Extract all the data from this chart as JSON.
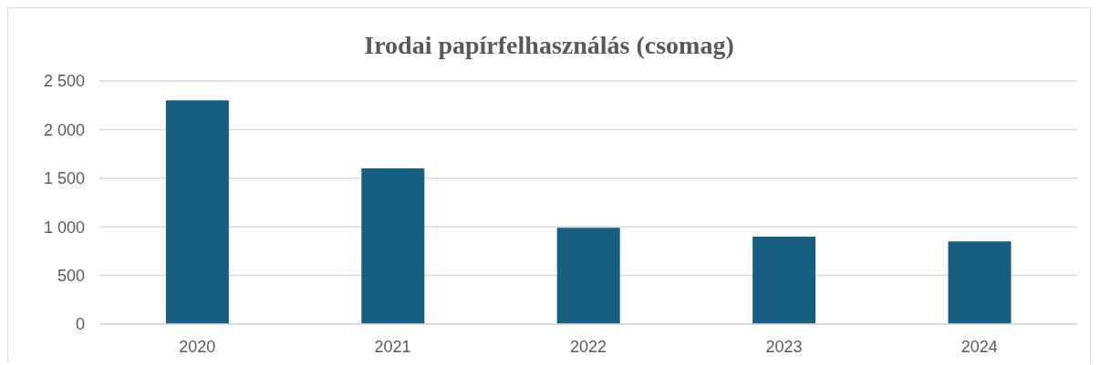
{
  "chart_data": {
    "type": "bar",
    "title": "Irodai papírfelhasználás (csomag)",
    "categories": [
      "2020",
      "2021",
      "2022",
      "2023",
      "2024"
    ],
    "values": [
      2300,
      1600,
      990,
      900,
      850
    ],
    "color": "#175f80",
    "ylim": [
      0,
      2500
    ],
    "yticks": [
      0,
      500,
      {
        "value": 1000,
        "label": "1 000"
      },
      {
        "value": 1500,
        "label": "1 500"
      },
      {
        "value": 2000,
        "label": "2 000"
      },
      {
        "value": 2500,
        "label": "2 500"
      }
    ],
    "grid": "y"
  }
}
